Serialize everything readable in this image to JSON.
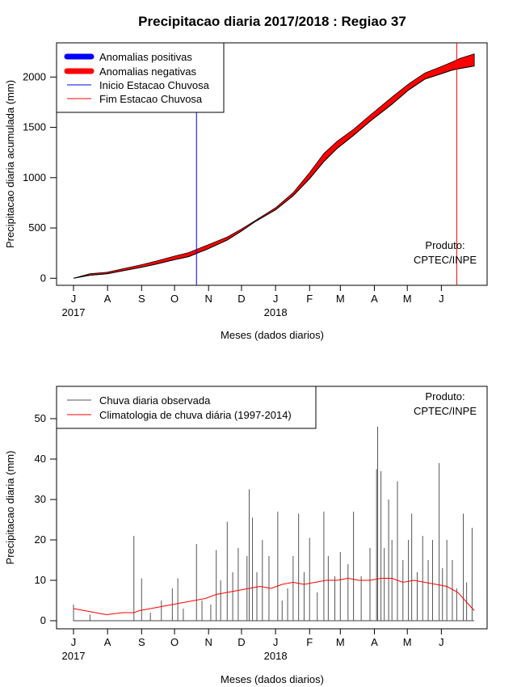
{
  "chart_data": [
    {
      "type": "area",
      "title": "Precipitacao diaria 2017/2018 : Regiao 37",
      "xlabel": "Meses (dados diarios)",
      "ylabel": "Precipitacao diaria acumulada (mm)",
      "ylim": [
        -70,
        2340
      ],
      "yticks": [
        0,
        500,
        1000,
        1500,
        2000
      ],
      "xticks": [
        "J",
        "A",
        "S",
        "O",
        "N",
        "D",
        "J",
        "F",
        "M",
        "A",
        "M",
        "J"
      ],
      "year_labels": [
        {
          "label": "2017",
          "tick": 0
        },
        {
          "label": "2018",
          "tick": 6
        }
      ],
      "legend": [
        {
          "label": "Anomalias positivas",
          "color": "#0000ff",
          "style": "thick"
        },
        {
          "label": "Anomalias negativas",
          "color": "#ff0000",
          "style": "thick"
        },
        {
          "label": "Inicio Estacao Chuvosa",
          "color": "#0000ff",
          "style": "thin"
        },
        {
          "label": "Fim Estacao Chuvosa",
          "color": "#ff0000",
          "style": "thin"
        }
      ],
      "annotation": [
        "Produto:",
        "CPTEC/INPE"
      ],
      "rainy_season_start_day": 112,
      "rainy_season_end_day": 349,
      "observed": {
        "days": [
          0,
          15,
          31,
          45,
          62,
          75,
          92,
          105,
          115,
          122,
          140,
          153,
          165,
          184,
          200,
          215,
          228,
          240,
          255,
          270,
          290,
          305,
          320,
          334,
          345,
          352,
          365
        ],
        "values": [
          0,
          30,
          45,
          75,
          110,
          140,
          185,
          215,
          260,
          290,
          380,
          470,
          560,
          680,
          820,
          990,
          1160,
          1290,
          1420,
          1560,
          1730,
          1870,
          1980,
          2030,
          2070,
          2085,
          2110
        ]
      },
      "climatology": {
        "days": [
          0,
          15,
          31,
          45,
          62,
          75,
          92,
          105,
          115,
          122,
          140,
          153,
          165,
          184,
          200,
          215,
          228,
          240,
          255,
          270,
          290,
          305,
          320,
          334,
          345,
          352,
          365
        ],
        "values": [
          0,
          45,
          60,
          95,
          135,
          170,
          220,
          255,
          300,
          330,
          410,
          490,
          570,
          700,
          850,
          1050,
          1240,
          1360,
          1480,
          1620,
          1800,
          1930,
          2040,
          2100,
          2150,
          2185,
          2230
        ]
      }
    },
    {
      "type": "bar",
      "xlabel": "Meses (dados diarios)",
      "ylabel": "Precipitacao diaria (mm)",
      "ylim": [
        -2,
        58
      ],
      "yticks": [
        0,
        10,
        20,
        30,
        40,
        50
      ],
      "xticks": [
        "J",
        "A",
        "S",
        "O",
        "N",
        "D",
        "J",
        "F",
        "M",
        "A",
        "M",
        "J"
      ],
      "year_labels": [
        {
          "label": "2017",
          "tick": 0
        },
        {
          "label": "2018",
          "tick": 6
        }
      ],
      "legend": [
        {
          "label": "Chuva diaria observada",
          "color": "#555555"
        },
        {
          "label": "Climatologia de chuva diária (1997-2014)",
          "color": "#ff0000"
        }
      ],
      "annotation": [
        "Produto:",
        "CPTEC/INPE"
      ],
      "spikes": [
        [
          0,
          4
        ],
        [
          15,
          1.5
        ],
        [
          55,
          21
        ],
        [
          62,
          10.5
        ],
        [
          70,
          2
        ],
        [
          80,
          5
        ],
        [
          90,
          8
        ],
        [
          95,
          10.5
        ],
        [
          100,
          3
        ],
        [
          112,
          19
        ],
        [
          117,
          5
        ],
        [
          125,
          4
        ],
        [
          130,
          17.5
        ],
        [
          134,
          10
        ],
        [
          140,
          24.5
        ],
        [
          145,
          12
        ],
        [
          150,
          18
        ],
        [
          158,
          16
        ],
        [
          160,
          32.5
        ],
        [
          163,
          25.5
        ],
        [
          167,
          12
        ],
        [
          172,
          20
        ],
        [
          178,
          16
        ],
        [
          186,
          27
        ],
        [
          190,
          5
        ],
        [
          195,
          8
        ],
        [
          200,
          16
        ],
        [
          205,
          26.5
        ],
        [
          210,
          12
        ],
        [
          215,
          20.5
        ],
        [
          222,
          7
        ],
        [
          228,
          27
        ],
        [
          232,
          16
        ],
        [
          238,
          11
        ],
        [
          243,
          17
        ],
        [
          250,
          14
        ],
        [
          255,
          27
        ],
        [
          262,
          11
        ],
        [
          270,
          18
        ],
        [
          276,
          37.5
        ],
        [
          277,
          48
        ],
        [
          280,
          37
        ],
        [
          283,
          18
        ],
        [
          287,
          30
        ],
        [
          290,
          20
        ],
        [
          295,
          34.5
        ],
        [
          300,
          15
        ],
        [
          305,
          20
        ],
        [
          308,
          26.5
        ],
        [
          313,
          12
        ],
        [
          318,
          21
        ],
        [
          323,
          15
        ],
        [
          327,
          20
        ],
        [
          333,
          39
        ],
        [
          336,
          13
        ],
        [
          340,
          20
        ],
        [
          345,
          15
        ],
        [
          349,
          8
        ],
        [
          355,
          26.5
        ],
        [
          358,
          9.5
        ],
        [
          363,
          23
        ]
      ],
      "climatology": {
        "days": [
          0,
          10,
          20,
          30,
          45,
          55,
          60,
          70,
          80,
          90,
          100,
          110,
          120,
          130,
          140,
          150,
          160,
          170,
          180,
          190,
          200,
          210,
          220,
          230,
          240,
          250,
          260,
          270,
          280,
          290,
          300,
          310,
          320,
          330,
          340,
          350,
          360,
          365
        ],
        "values": [
          3,
          2.5,
          2,
          1.5,
          2,
          2,
          2.5,
          3,
          3.5,
          4,
          4.5,
          5,
          5.5,
          6.5,
          7,
          7.5,
          8,
          8.5,
          8,
          9,
          9.5,
          9,
          9.5,
          10,
          10,
          10.5,
          10,
          10,
          10.5,
          10.5,
          9.5,
          10,
          9.5,
          9,
          8.5,
          7,
          4,
          2.5
        ]
      }
    }
  ]
}
